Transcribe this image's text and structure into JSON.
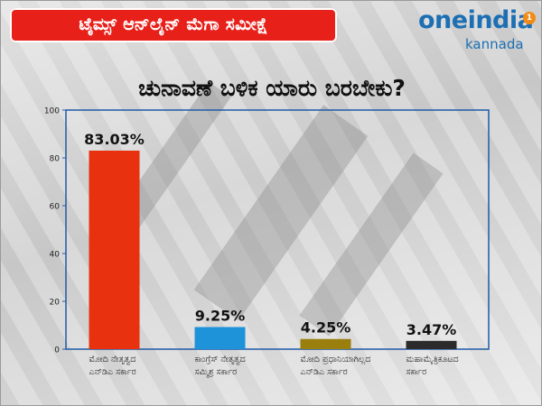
{
  "banner": {
    "text": "ಟೈಮ್ಸ್ ಆನ್‌ಲೈನ್ ಮೆಗಾ ಸಮೀಕ್ಷೆ"
  },
  "logo": {
    "main": "oneindia",
    "sub": "kannada",
    "badge": "1"
  },
  "colors": {
    "banner": "#e8201a",
    "brand": "#1d6fb3",
    "axis": "#1f5aa6"
  },
  "chart_data": {
    "type": "bar",
    "title": "ಚುನಾವಣೆ ಬಳಿಕ ಯಾರು ಬರಬೇಕು?",
    "categories": [
      [
        "ಮೋದಿ ನೇತೃತ್ವದ",
        "ಎನ್‌ಡಿಎ ಸರ್ಕಾರ"
      ],
      [
        "ಕಾಂಗ್ರೆಸ್ ನೇತೃತ್ವದ",
        "ಸಮ್ಮಿಶ್ರ ಸರ್ಕಾರ"
      ],
      [
        "ಮೋದಿ ಪ್ರಧಾನಿಯಾಗಿಲ್ಲದ",
        "ಎನ್‌ಡಿಎ ಸರ್ಕಾರ"
      ],
      [
        "ಮಹಾಮೈತ್ರಿಕೂಟದ",
        "ಸರ್ಕಾರ"
      ]
    ],
    "values": [
      83.03,
      9.25,
      4.25,
      3.47
    ],
    "data_labels": [
      "83.03%",
      "9.25%",
      "4.25%",
      "3.47%"
    ],
    "bar_colors": [
      "#e8310e",
      "#1e93d9",
      "#9a7f0e",
      "#2b2b2b"
    ],
    "ylim": [
      0,
      100
    ],
    "yticks": [
      "0",
      "20",
      "40",
      "60",
      "80",
      "100"
    ],
    "grid": false,
    "xlabel": "",
    "ylabel": ""
  }
}
